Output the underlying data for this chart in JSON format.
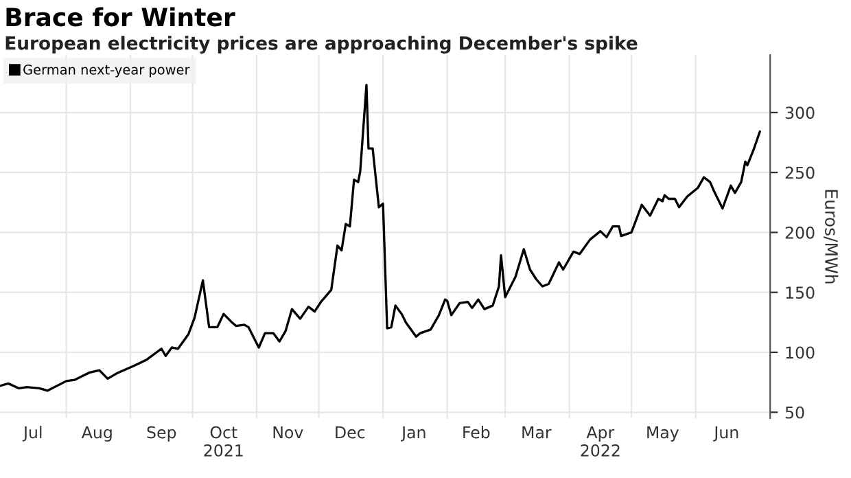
{
  "chart_data": {
    "type": "line",
    "title": "Brace for Winter",
    "subtitle": "European electricity prices are approaching December's spike",
    "ylabel": "Euros/MWh",
    "x": [
      "2021-06-30",
      "2021-07-04",
      "2021-07-09",
      "2021-07-13",
      "2021-07-19",
      "2021-07-23",
      "2021-08-01",
      "2021-08-05",
      "2021-08-12",
      "2021-08-17",
      "2021-08-21",
      "2021-08-26",
      "2021-09-03",
      "2021-09-09",
      "2021-09-16",
      "2021-09-18",
      "2021-09-21",
      "2021-09-24",
      "2021-09-29",
      "2021-10-02",
      "2021-10-06",
      "2021-10-09",
      "2021-10-13",
      "2021-10-16",
      "2021-10-20",
      "2021-10-22",
      "2021-10-26",
      "2021-10-28",
      "2021-11-02",
      "2021-11-05",
      "2021-11-09",
      "2021-11-12",
      "2021-11-15",
      "2021-11-18",
      "2021-11-22",
      "2021-11-26",
      "2021-11-29",
      "2021-12-02",
      "2021-12-07",
      "2021-12-10",
      "2021-12-12",
      "2021-12-14",
      "2021-12-16",
      "2021-12-18",
      "2021-12-20",
      "2021-12-21",
      "2021-12-24",
      "2021-12-25",
      "2021-12-27",
      "2021-12-30",
      "2022-01-01",
      "2022-01-03",
      "2022-01-05",
      "2022-01-07",
      "2022-01-10",
      "2022-01-12",
      "2022-01-17",
      "2022-01-19",
      "2022-01-24",
      "2022-01-28",
      "2022-01-31",
      "2022-02-01",
      "2022-02-03",
      "2022-02-05",
      "2022-02-07",
      "2022-02-11",
      "2022-02-13",
      "2022-02-16",
      "2022-02-19",
      "2022-02-23",
      "2022-02-26",
      "2022-02-27",
      "2022-03-01",
      "2022-03-06",
      "2022-03-10",
      "2022-03-13",
      "2022-03-16",
      "2022-03-19",
      "2022-03-22",
      "2022-03-27",
      "2022-03-29",
      "2022-04-03",
      "2022-04-06",
      "2022-04-11",
      "2022-04-16",
      "2022-04-19",
      "2022-04-22",
      "2022-04-25",
      "2022-04-26",
      "2022-05-01",
      "2022-05-06",
      "2022-05-10",
      "2022-05-14",
      "2022-05-16",
      "2022-05-17",
      "2022-05-19",
      "2022-05-22",
      "2022-05-24",
      "2022-05-28",
      "2022-06-02",
      "2022-06-05",
      "2022-06-08",
      "2022-06-10",
      "2022-06-14",
      "2022-06-18",
      "2022-06-20",
      "2022-06-23",
      "2022-06-25",
      "2022-06-26",
      "2022-06-29",
      "2022-07-02"
    ],
    "series": [
      {
        "name": "German next-year power",
        "color": "#000000",
        "values": [
          72,
          74,
          70,
          71,
          70,
          68,
          76,
          77,
          83,
          85,
          78,
          83,
          89,
          94,
          103,
          97,
          104,
          103,
          115,
          129,
          160,
          121,
          121,
          132,
          125,
          122,
          123,
          121,
          104,
          116,
          116,
          109,
          118,
          136,
          128,
          138,
          134,
          142,
          152,
          189,
          185,
          207,
          205,
          244,
          242,
          251,
          323,
          270,
          270,
          221,
          224,
          120,
          121,
          139,
          132,
          125,
          113,
          116,
          119,
          131,
          144,
          143,
          131,
          136,
          141,
          142,
          137,
          144,
          136,
          139,
          155,
          181,
          146,
          163,
          186,
          169,
          161,
          155,
          157,
          175,
          169,
          184,
          182,
          194,
          201,
          196,
          205,
          205,
          197,
          200,
          223,
          214,
          228,
          226,
          231,
          228,
          228,
          221,
          230,
          237,
          246,
          242,
          234,
          220,
          239,
          233,
          242,
          259,
          256,
          269,
          284
        ]
      }
    ],
    "xlim": [
      "2021-06-30",
      "2022-07-07"
    ],
    "xticks": [
      {
        "value": "2021-07-16",
        "label": "Jul"
      },
      {
        "value": "2021-08-01",
        "label": null
      },
      {
        "value": "2021-08-16",
        "label": "Aug"
      },
      {
        "value": "2021-09-01",
        "label": null
      },
      {
        "value": "2021-09-16",
        "label": "Sep"
      },
      {
        "value": "2021-10-01",
        "label": null
      },
      {
        "value": "2021-10-16",
        "label": "Oct\n2021"
      },
      {
        "value": "2021-11-01",
        "label": null
      },
      {
        "value": "2021-11-16",
        "label": "Nov"
      },
      {
        "value": "2021-12-01",
        "label": null
      },
      {
        "value": "2021-12-16",
        "label": "Dec"
      },
      {
        "value": "2022-01-01",
        "label": null
      },
      {
        "value": "2022-01-16",
        "label": "Jan"
      },
      {
        "value": "2022-02-01",
        "label": null
      },
      {
        "value": "2022-02-15",
        "label": "Feb"
      },
      {
        "value": "2022-03-01",
        "label": null
      },
      {
        "value": "2022-03-16",
        "label": "Mar"
      },
      {
        "value": "2022-04-01",
        "label": null
      },
      {
        "value": "2022-04-16",
        "label": "Apr\n2022"
      },
      {
        "value": "2022-05-01",
        "label": null
      },
      {
        "value": "2022-05-16",
        "label": "May"
      },
      {
        "value": "2022-06-01",
        "label": null
      },
      {
        "value": "2022-06-16",
        "label": "Jun"
      }
    ],
    "ylim": [
      45,
      348
    ],
    "yticks": [
      50,
      100,
      150,
      200,
      250,
      300
    ],
    "grid": true,
    "legend": "top left"
  }
}
